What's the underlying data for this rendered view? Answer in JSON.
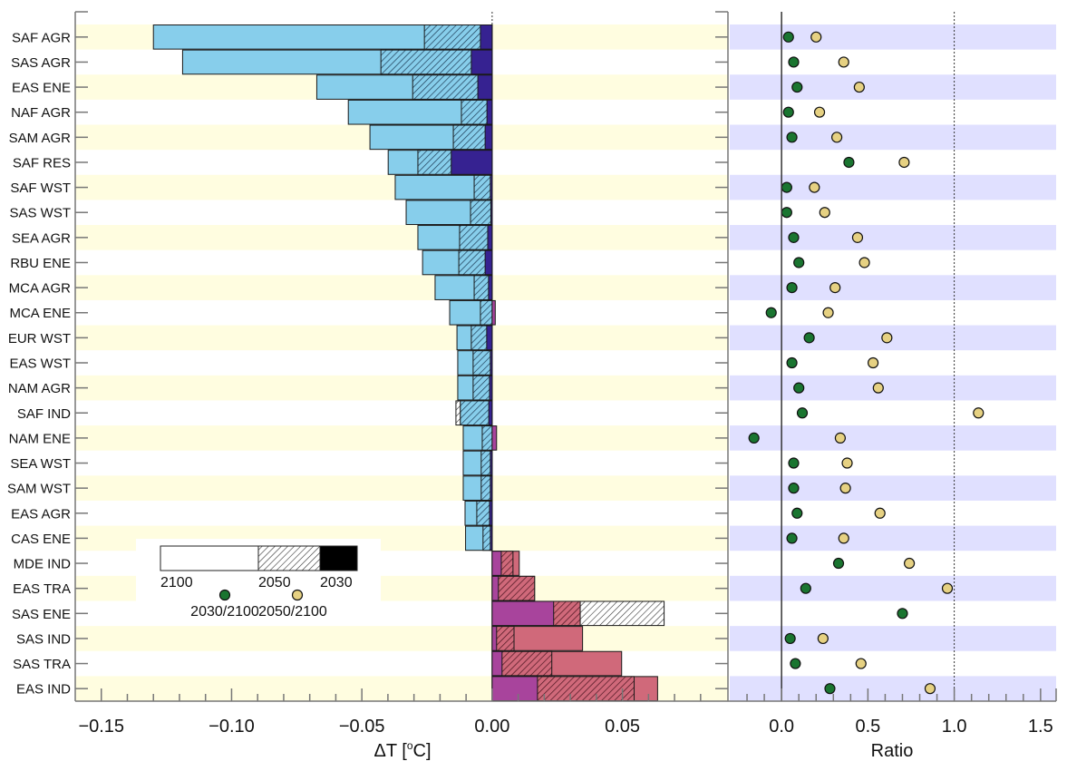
{
  "chart_data": [
    {
      "type": "bar",
      "orientation": "horizontal",
      "stacking": "overlaid",
      "xlabel": "ΔT [°C]",
      "xlabel_parts": {
        "delta": "ΔT [",
        "degree": "o",
        "unit": "C]"
      },
      "xlim": [
        -0.16,
        0.0905
      ],
      "xticks": [
        -0.15,
        -0.1,
        -0.05,
        0.0,
        0.05
      ],
      "xtick_labels": [
        "−0.15",
        "−0.10",
        "−0.05",
        "0.00",
        "0.05"
      ],
      "categories": [
        "SAF AGR",
        "SAS AGR",
        "EAS ENE",
        "NAF AGR",
        "SAM AGR",
        "SAF RES",
        "SAF WST",
        "SAS WST",
        "SEA AGR",
        "RBU ENE",
        "MCA AGR",
        "MCA ENE",
        "EUR WST",
        "EAS WST",
        "NAM AGR",
        "SAF IND",
        "NAM ENE",
        "SEA WST",
        "SAM WST",
        "EAS AGR",
        "CAS ENE",
        "MDE IND",
        "EAS TRA",
        "SAS ENE",
        "SAS IND",
        "SAS TRA",
        "EAS IND"
      ],
      "series": [
        {
          "name": "2100",
          "values": [
            -0.13,
            -0.1188,
            -0.0673,
            -0.0552,
            -0.0469,
            -0.0399,
            -0.0372,
            -0.033,
            -0.0285,
            -0.0267,
            -0.0219,
            -0.0163,
            -0.0135,
            -0.0132,
            -0.0132,
            -0.0122,
            -0.0111,
            -0.0111,
            -0.0111,
            -0.0104,
            -0.0102,
            0.0104,
            0.0163,
            0.0338,
            0.0347,
            0.0497,
            0.0635
          ]
        },
        {
          "name": "2050",
          "values": [
            -0.026,
            -0.0427,
            -0.0305,
            -0.0118,
            -0.0149,
            -0.0285,
            -0.0069,
            -0.0083,
            -0.0125,
            -0.0128,
            -0.0069,
            -0.0045,
            -0.008,
            -0.0073,
            -0.0073,
            -0.0139,
            -0.0038,
            -0.0042,
            -0.0042,
            -0.0059,
            -0.0035,
            0.008,
            0.0163,
            0.066,
            0.0084,
            0.0229,
            0.0545
          ]
        },
        {
          "name": "2030",
          "values": [
            -0.0045,
            -0.008,
            -0.0055,
            -0.002,
            -0.0027,
            -0.0157,
            -0.0007,
            -0.0005,
            -0.0017,
            -0.0027,
            -0.0014,
            0.0012,
            -0.0021,
            -0.0007,
            -0.001,
            -0.0013,
            0.0017,
            -0.0007,
            -0.0007,
            -0.001,
            -0.0007,
            0.0035,
            0.0024,
            0.0236,
            0.0017,
            0.0038,
            0.0174
          ]
        }
      ],
      "colors": {
        "negative_2100": "#87CEEB",
        "negative_2030": "#362291",
        "positive_2100": "#D0697A",
        "positive_2030": "#A8449C",
        "band_color": "#FFFDE0"
      },
      "legend": {
        "placement": "lower-left",
        "bar_labels": [
          "2100",
          "2050",
          "2030"
        ],
        "dot_labels": [
          "2030/2100",
          "2050/2100"
        ]
      },
      "grid": false
    },
    {
      "type": "scatter",
      "xlabel": "Ratio",
      "xlim": [
        -0.3,
        1.59
      ],
      "xticks": [
        0.0,
        0.5,
        1.0,
        1.5
      ],
      "xtick_labels": [
        "0.0",
        "0.5",
        "1.0",
        "1.5"
      ],
      "reference_lines": [
        {
          "x": 0.0,
          "style": "solid"
        },
        {
          "x": 1.0,
          "style": "dotted"
        }
      ],
      "categories": [
        "SAF AGR",
        "SAS AGR",
        "EAS ENE",
        "NAF AGR",
        "SAM AGR",
        "SAF RES",
        "SAF WST",
        "SAS WST",
        "SEA AGR",
        "RBU ENE",
        "MCA AGR",
        "MCA ENE",
        "EUR WST",
        "EAS WST",
        "NAM AGR",
        "SAF IND",
        "NAM ENE",
        "SEA WST",
        "SAM WST",
        "EAS AGR",
        "CAS ENE",
        "MDE IND",
        "EAS TRA",
        "SAS ENE",
        "SAS IND",
        "SAS TRA",
        "EAS IND"
      ],
      "series": [
        {
          "name": "2030/2100",
          "color": "#1A7530",
          "values": [
            0.04,
            0.07,
            0.09,
            0.04,
            0.06,
            0.39,
            0.03,
            0.03,
            0.07,
            0.1,
            0.06,
            -0.06,
            0.16,
            0.06,
            0.1,
            0.12,
            -0.16,
            0.07,
            0.07,
            0.09,
            0.06,
            0.33,
            0.14,
            0.7,
            0.05,
            0.08,
            0.28
          ]
        },
        {
          "name": "2050/2100",
          "color": "#E6D182",
          "values": [
            0.2,
            0.36,
            0.45,
            0.22,
            0.32,
            0.71,
            0.19,
            0.25,
            0.44,
            0.48,
            0.31,
            0.27,
            0.61,
            0.53,
            0.56,
            1.14,
            0.34,
            0.38,
            0.37,
            0.57,
            0.36,
            0.74,
            0.96,
            null,
            0.24,
            0.46,
            0.86
          ]
        }
      ],
      "band_color": "#E0E0FF",
      "grid": false
    }
  ]
}
